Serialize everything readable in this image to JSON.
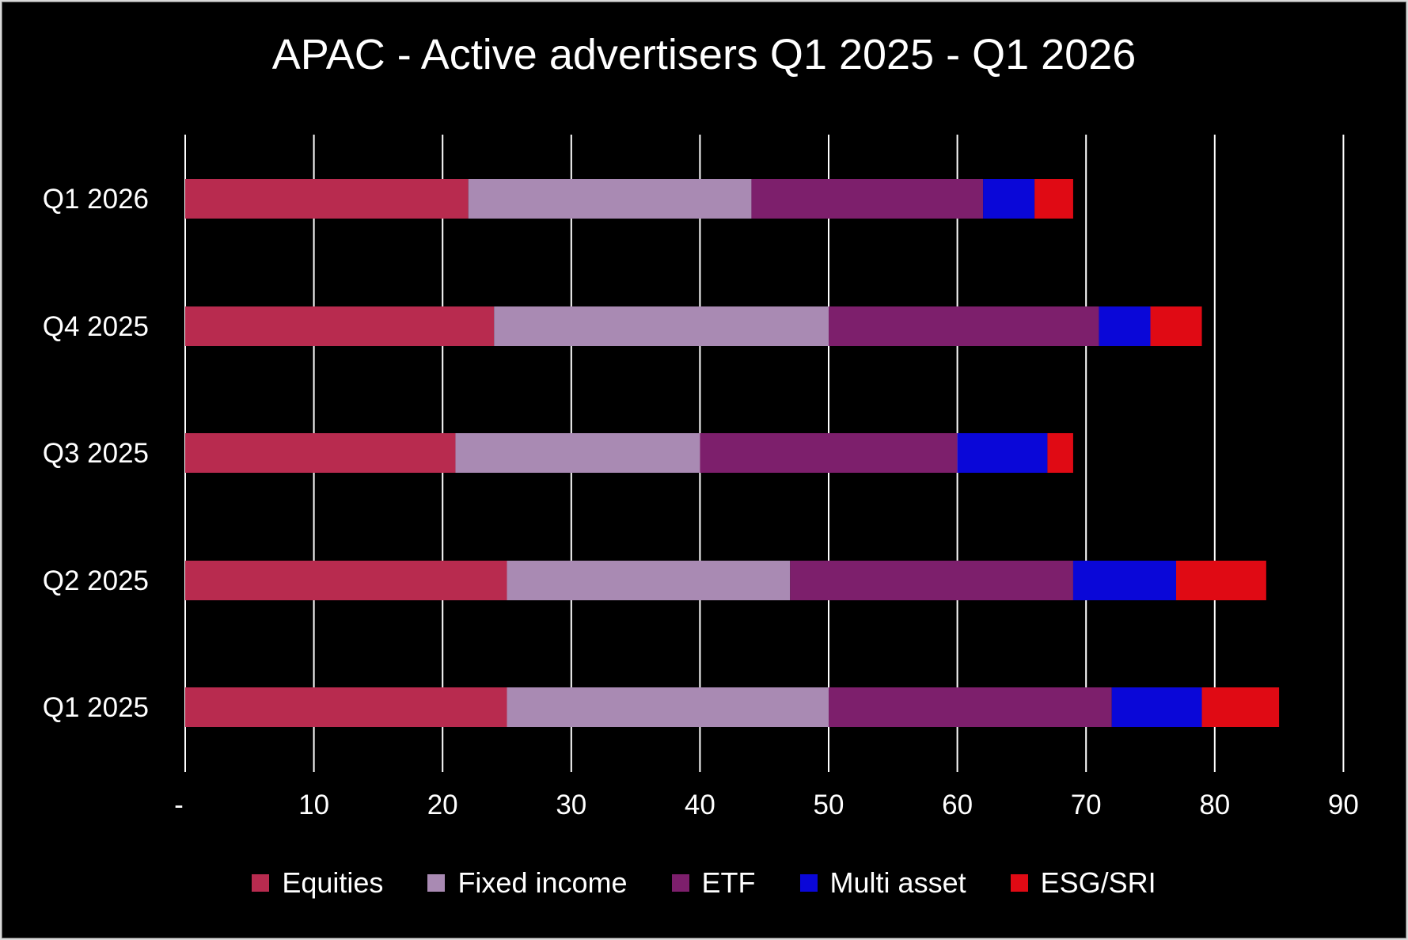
{
  "chart_data": {
    "type": "bar",
    "orientation": "horizontal",
    "stacked": true,
    "title": "APAC - Active advertisers Q1 2025 - Q1 2026",
    "categories": [
      "Q1 2026",
      "Q4 2025",
      "Q3 2025",
      "Q2 2025",
      "Q1 2025"
    ],
    "series": [
      {
        "name": "Equities",
        "color": "#b82b4f",
        "values": [
          22,
          24,
          21,
          25,
          25
        ]
      },
      {
        "name": "Fixed income",
        "color": "#a98ab3",
        "values": [
          22,
          26,
          19,
          22,
          25
        ]
      },
      {
        "name": "ETF",
        "color": "#7d1f6c",
        "values": [
          18,
          21,
          20,
          22,
          22
        ]
      },
      {
        "name": "Multi asset",
        "color": "#0a07d8",
        "values": [
          4,
          4,
          7,
          8,
          7
        ]
      },
      {
        "name": "ESG/SRI",
        "color": "#e00a14",
        "values": [
          3,
          4,
          2,
          7,
          6
        ]
      }
    ],
    "xlim": [
      0,
      90
    ],
    "ticks": [
      "-",
      "10",
      "20",
      "30",
      "40",
      "50",
      "60",
      "70",
      "80",
      "90"
    ],
    "xlabel": "",
    "ylabel": "",
    "grid": "vertical",
    "legend_position": "bottom",
    "background": "#000000",
    "text_color": "#ffffff",
    "grid_color": "#ffffff"
  }
}
